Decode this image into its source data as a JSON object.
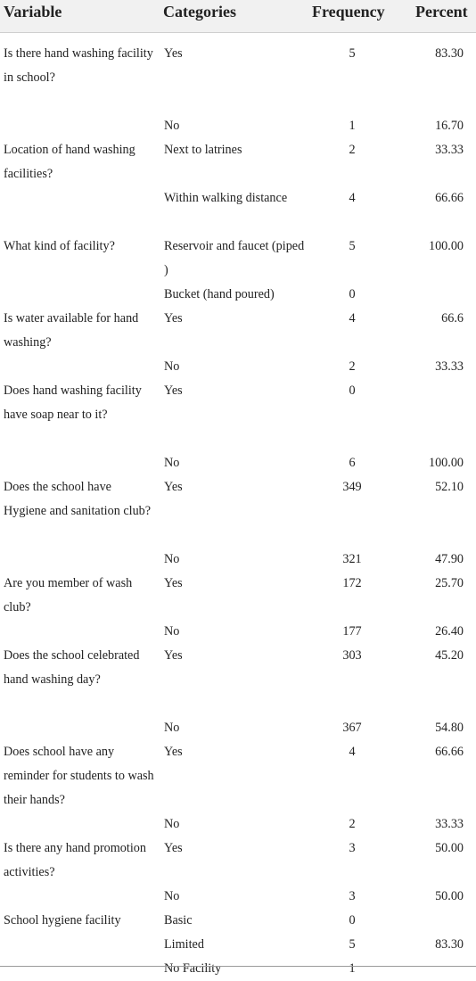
{
  "table": {
    "headers": {
      "variable": "Variable",
      "categories": "Categories",
      "frequency": "Frequency",
      "percent": "Percent"
    },
    "rows": [
      {
        "variable": "Is there hand washing facility in school?",
        "category": "Yes",
        "frequency": "5",
        "percent": "83.30"
      },
      {
        "variable": "",
        "category": "No",
        "frequency": "1",
        "percent": "16.70"
      },
      {
        "variable": "Location of hand washing facilities?",
        "category": "Next to latrines",
        "frequency": "2",
        "percent": "33.33"
      },
      {
        "variable": "",
        "category": "Within walking distance",
        "frequency": "4",
        "percent": "66.66"
      },
      {
        "variable": "What kind of facility?",
        "category": "Reservoir and faucet (piped )",
        "frequency": "5",
        "percent": "100.00"
      },
      {
        "variable": "",
        "category": "Bucket (hand poured)",
        "frequency": "0",
        "percent": ""
      },
      {
        "variable": "Is water available for hand washing?",
        "category": "Yes",
        "frequency": "4",
        "percent": "66.6"
      },
      {
        "variable": "",
        "category": "No",
        "frequency": "2",
        "percent": "33.33"
      },
      {
        "variable": "Does hand washing facility have soap near to it?",
        "category": "Yes",
        "frequency": "0",
        "percent": ""
      },
      {
        "variable": "",
        "category": "No",
        "frequency": "6",
        "percent": "100.00"
      },
      {
        "variable": "Does the school have Hygiene and sanitation club?",
        "category": "Yes",
        "frequency": "349",
        "percent": "52.10"
      },
      {
        "variable": "",
        "category": "No",
        "frequency": "321",
        "percent": "47.90"
      },
      {
        "variable": "Are you member of wash club?",
        "category": "Yes",
        "frequency": "172",
        "percent": "25.70"
      },
      {
        "variable": "",
        "category": "No",
        "frequency": "177",
        "percent": "26.40"
      },
      {
        "variable": "Does the school celebrated hand washing day?",
        "category": "Yes",
        "frequency": "303",
        "percent": "45.20"
      },
      {
        "variable": "",
        "category": "No",
        "frequency": "367",
        "percent": "54.80"
      },
      {
        "variable": "Does school have any reminder for students to wash their hands?",
        "category": "Yes",
        "frequency": "4",
        "percent": "66.66"
      },
      {
        "variable": "",
        "category": "No",
        "frequency": "2",
        "percent": "33.33"
      },
      {
        "variable": "Is there any hand promotion activities?",
        "category": "Yes",
        "frequency": "3",
        "percent": "50.00"
      },
      {
        "variable": "",
        "category": "No",
        "frequency": "3",
        "percent": "50.00"
      },
      {
        "variable": "School hygiene facility",
        "category": "Basic",
        "frequency": "0",
        "percent": ""
      },
      {
        "variable": "",
        "category": "Limited",
        "frequency": "5",
        "percent": "83.30"
      },
      {
        "variable": "",
        "category": "No Facility",
        "frequency": "1",
        "percent": ""
      }
    ]
  }
}
